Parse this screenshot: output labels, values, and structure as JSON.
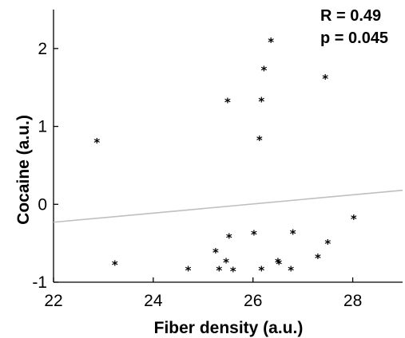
{
  "chart_data": {
    "type": "scatter",
    "title": "",
    "xlabel": "Fiber density (a.u.)",
    "ylabel": "Cocaine (a.u.)",
    "xlim": [
      22,
      29
    ],
    "ylim": [
      -1,
      2.5
    ],
    "xticks": [
      22,
      24,
      26,
      28
    ],
    "yticks": [
      -1,
      0,
      1,
      2
    ],
    "grid": false,
    "annotations": [
      "R = 0.49",
      "p = 0.045"
    ],
    "marker": "*",
    "points": [
      {
        "x": 22.87,
        "y": 0.82
      },
      {
        "x": 23.23,
        "y": -0.75
      },
      {
        "x": 24.7,
        "y": -0.82
      },
      {
        "x": 25.25,
        "y": -0.59
      },
      {
        "x": 25.32,
        "y": -0.82
      },
      {
        "x": 25.46,
        "y": -0.72
      },
      {
        "x": 25.49,
        "y": 1.34
      },
      {
        "x": 25.52,
        "y": -0.4
      },
      {
        "x": 25.6,
        "y": -0.83
      },
      {
        "x": 26.02,
        "y": -0.36
      },
      {
        "x": 26.13,
        "y": 0.85
      },
      {
        "x": 26.17,
        "y": 1.35
      },
      {
        "x": 26.17,
        "y": -0.82
      },
      {
        "x": 26.22,
        "y": 1.75
      },
      {
        "x": 26.36,
        "y": 2.11
      },
      {
        "x": 26.5,
        "y": -0.72
      },
      {
        "x": 26.52,
        "y": -0.74
      },
      {
        "x": 26.76,
        "y": -0.82
      },
      {
        "x": 26.8,
        "y": -0.35
      },
      {
        "x": 27.3,
        "y": -0.66
      },
      {
        "x": 27.45,
        "y": 1.64
      },
      {
        "x": 27.5,
        "y": -0.48
      },
      {
        "x": 28.02,
        "y": -0.16
      }
    ],
    "fit_line": {
      "x": [
        22,
        29
      ],
      "y": [
        -0.23,
        0.18
      ],
      "color": "#bfbfbf"
    }
  }
}
